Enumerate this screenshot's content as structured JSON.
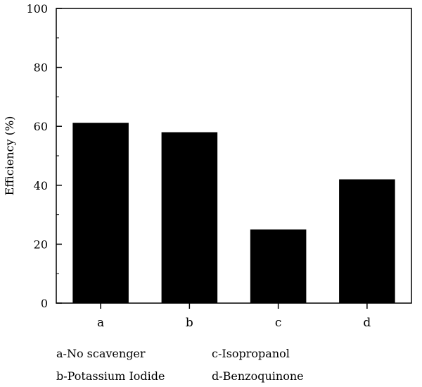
{
  "chart_data": {
    "type": "bar",
    "categories": [
      "a",
      "b",
      "c",
      "d"
    ],
    "values": [
      61.2,
      58.0,
      25.0,
      42.0
    ],
    "title": "",
    "xlabel": "",
    "ylabel": "Efficiency (%)",
    "ylim": [
      0,
      100
    ],
    "yticks": [
      0,
      20,
      40,
      60,
      80,
      100
    ],
    "grid": false,
    "bar_color": "#000000"
  },
  "legend": {
    "items": [
      "a-No scavenger",
      "c-Isopropanol",
      "b-Potassium Iodide",
      "d-Benzoquinone"
    ]
  }
}
